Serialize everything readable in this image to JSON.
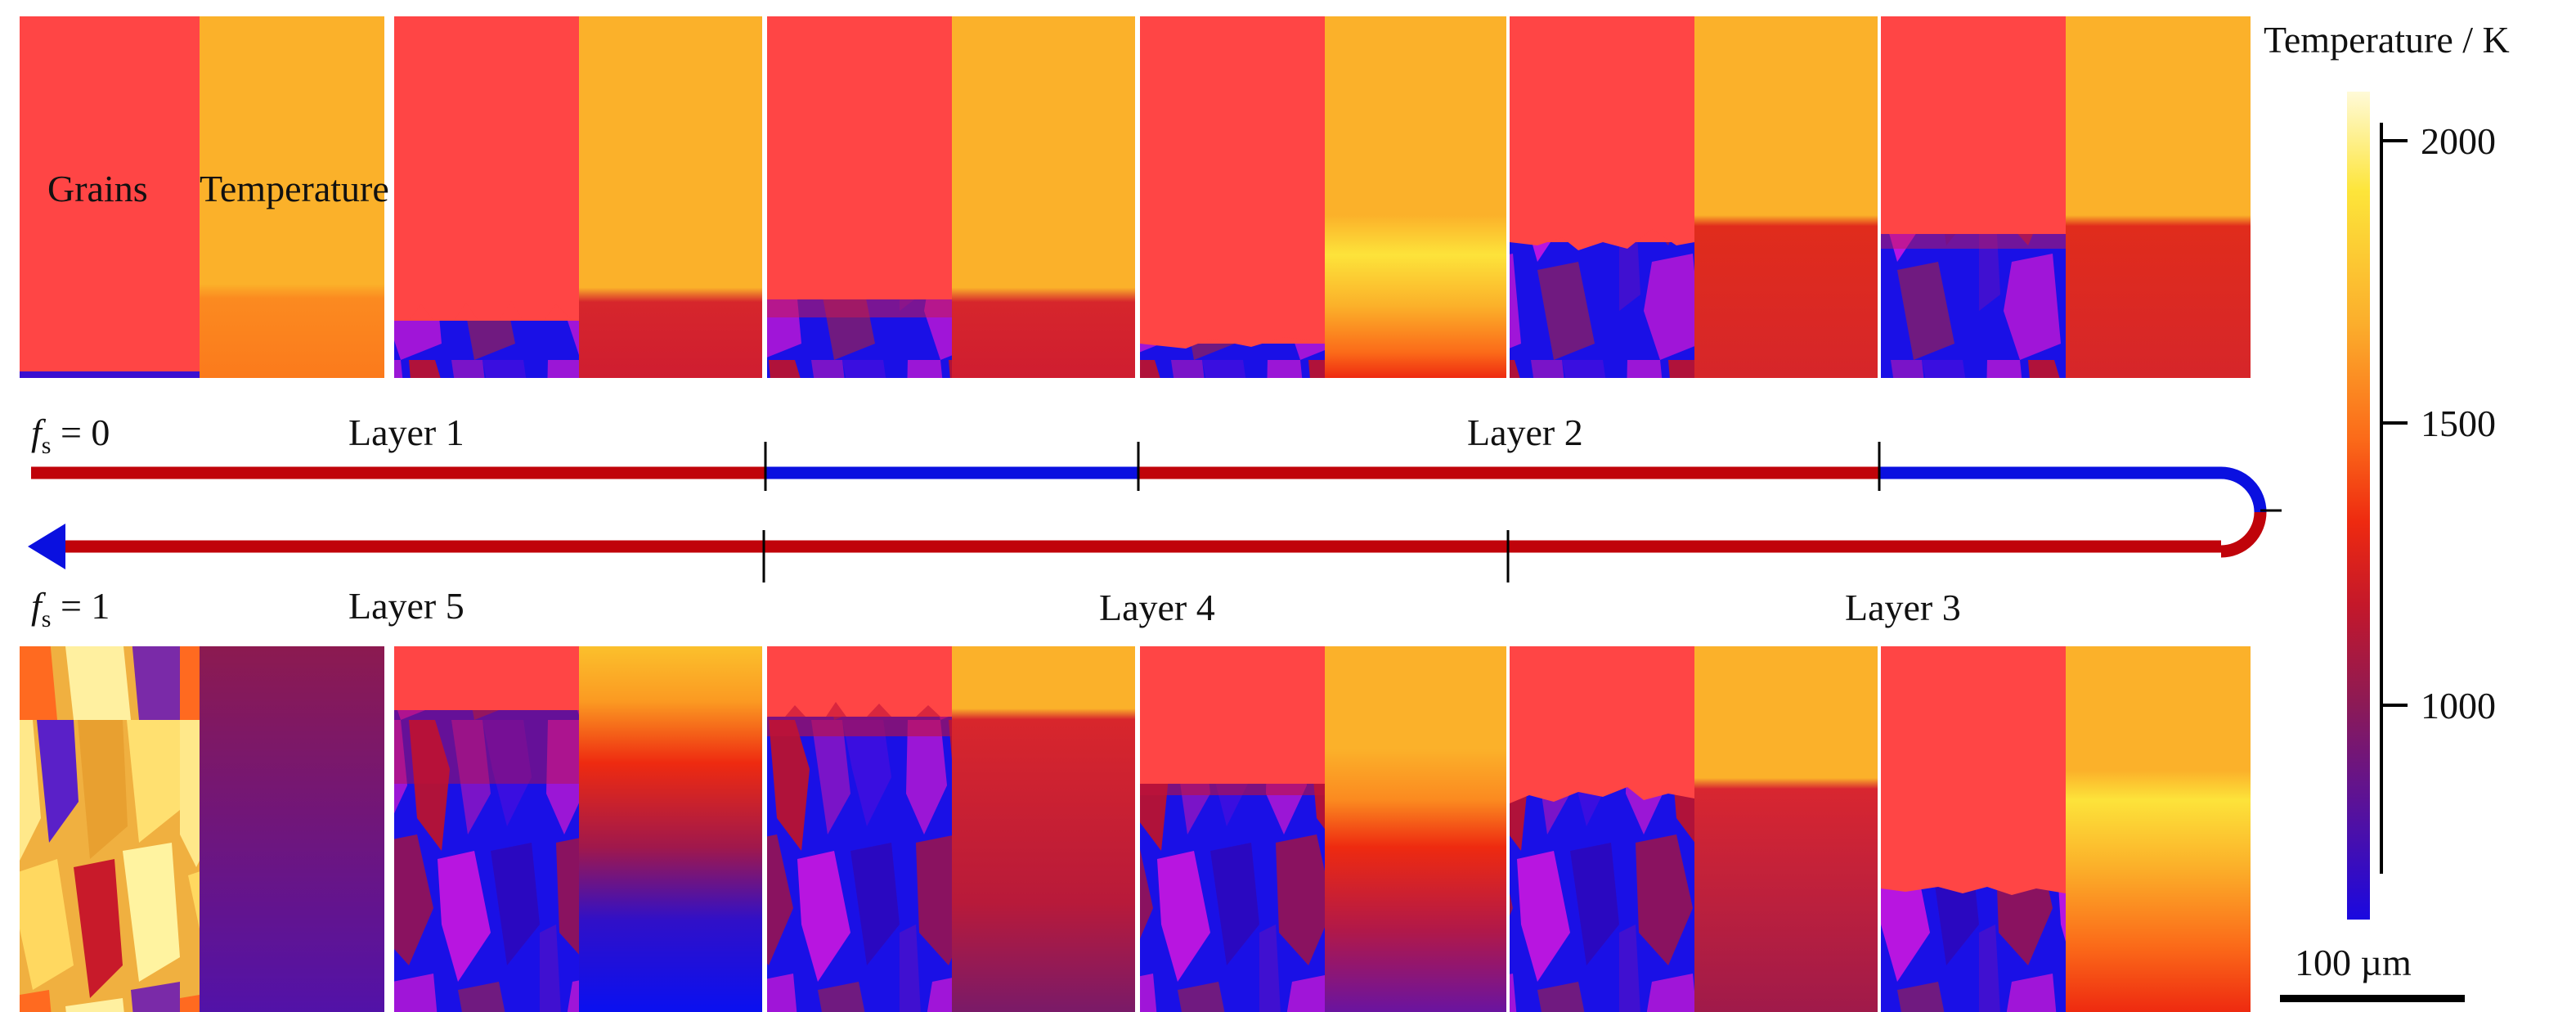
{
  "labels": {
    "grains_title": "Grains",
    "temperature_title": "Temperature",
    "colorbar_title": "Temperature / K",
    "scale_bar_label": "100 µm",
    "fs0_symbol": "f",
    "fs0_subscript": "s",
    "fs0_value": " = 0",
    "fs1_symbol": "f",
    "fs1_subscript": "s",
    "fs1_value": " = 1"
  },
  "colorbar": {
    "ticks": [
      "2000",
      "1500",
      "1000"
    ],
    "tick_values": [
      2000,
      1500,
      1000
    ],
    "min_value": 500,
    "max_value": 2130,
    "colors": [
      "#fffad8",
      "#fde53a",
      "#fbae2c",
      "#fb6a19",
      "#ee2a10",
      "#c4182a",
      "#8c1a56",
      "#5a1298",
      "#1a08e0"
    ]
  },
  "layers": {
    "top": [
      "Layer 1",
      "Layer 2"
    ],
    "bottom": [
      "Layer 5",
      "Layer 4",
      "Layer 3"
    ]
  },
  "colors": {
    "melt": "#ff4545",
    "hot": "#fbb12a",
    "solid_path": "#c0030a",
    "liquid_path": "#0a10e0",
    "grain_blue": "#1a10e6",
    "grain_purple": "#9b16d6",
    "grain_red": "#b0123a"
  }
}
